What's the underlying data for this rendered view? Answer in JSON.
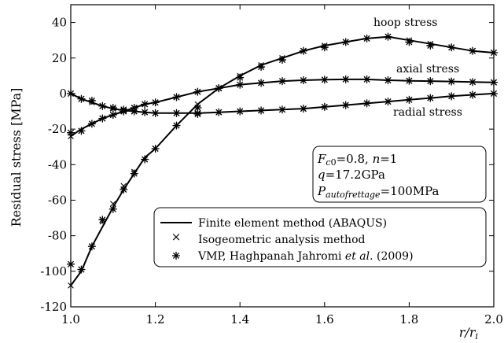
{
  "chart_data": {
    "type": "line",
    "xlabel": "r/r_i",
    "ylabel": "Residual stress [MPa]",
    "xlim": [
      1.0,
      2.0
    ],
    "ylim": [
      -120,
      50
    ],
    "xticks": [
      "1.0",
      "1.2",
      "1.4",
      "1.6",
      "1.8",
      "2.0"
    ],
    "yticks": [
      "40",
      "20",
      "0",
      "-20",
      "-40",
      "-60",
      "-80",
      "-100",
      "-120"
    ],
    "grid": false,
    "legend_placement": "lower-right",
    "annotations": [
      "hoop stress",
      "axial stress",
      "radial stress"
    ],
    "params": {
      "line1": "Fc0=0.8, n=1",
      "line2": "q=17.2GPa",
      "line3": "Pautofrettage=100MPa"
    },
    "legend": [
      "Finite element method (ABAQUS)",
      "Isogeometric analysis method",
      "VMP, Haghpanah Jahromi et al. (2009)"
    ],
    "series": [
      {
        "name": "hoop stress",
        "x": [
          1.0,
          1.025,
          1.05,
          1.075,
          1.1,
          1.125,
          1.15,
          1.175,
          1.2,
          1.25,
          1.3,
          1.35,
          1.4,
          1.45,
          1.5,
          1.55,
          1.6,
          1.65,
          1.7,
          1.75,
          1.8,
          1.85,
          1.9,
          1.95,
          2.0
        ],
        "fem": [
          -108,
          -100,
          -86,
          -75,
          -64,
          -54,
          -45,
          -36,
          -31,
          -18,
          -6,
          3,
          10,
          16,
          20,
          24,
          27,
          29,
          31,
          32,
          30,
          28,
          26,
          24,
          23
        ],
        "iga": [
          -108,
          -99,
          -86,
          -72,
          -62,
          -52,
          -44,
          -37,
          -31,
          -18,
          -6,
          3,
          10,
          16,
          20,
          24,
          27,
          29,
          31,
          32,
          30,
          28,
          26,
          24,
          23
        ],
        "vmp": [
          -96,
          -99,
          -86,
          -71,
          -65,
          -54,
          -45,
          -37,
          -31,
          -18,
          -8,
          3,
          9,
          15,
          19,
          24,
          26,
          29,
          31,
          32,
          29,
          27,
          26,
          24,
          23
        ]
      },
      {
        "name": "axial stress",
        "x": [
          1.0,
          1.025,
          1.05,
          1.075,
          1.1,
          1.125,
          1.15,
          1.175,
          1.2,
          1.25,
          1.3,
          1.35,
          1.4,
          1.45,
          1.5,
          1.55,
          1.6,
          1.65,
          1.7,
          1.75,
          1.8,
          1.85,
          1.9,
          1.95,
          2.0
        ],
        "fem": [
          -24,
          -20,
          -17,
          -14,
          -12,
          -10,
          -8,
          -6,
          -5,
          -2,
          1,
          3,
          5,
          6,
          7,
          7.5,
          7.8,
          8,
          8,
          7.5,
          7.2,
          7,
          6.8,
          6.5,
          6.3
        ],
        "iga": [
          -24,
          -21,
          -17,
          -14,
          -12,
          -10,
          -8,
          -6,
          -5,
          -2,
          1,
          3,
          5,
          6,
          7,
          7.5,
          7.8,
          8,
          8,
          7.5,
          7.2,
          7,
          6.8,
          6.5,
          6.3
        ],
        "vmp": [
          -22,
          -21,
          -17,
          -14,
          -12,
          -10,
          -8,
          -6,
          -5,
          -2,
          1,
          3,
          5,
          6,
          7,
          7.5,
          7.8,
          8,
          8,
          7.5,
          7.2,
          7,
          6.8,
          6.5,
          6.3
        ]
      },
      {
        "name": "radial stress",
        "x": [
          1.0,
          1.025,
          1.05,
          1.075,
          1.1,
          1.125,
          1.15,
          1.175,
          1.2,
          1.25,
          1.3,
          1.35,
          1.4,
          1.45,
          1.5,
          1.55,
          1.6,
          1.65,
          1.7,
          1.75,
          1.8,
          1.85,
          1.9,
          1.95,
          2.0
        ],
        "fem": [
          0,
          -3,
          -5,
          -7,
          -8.5,
          -9.5,
          -10,
          -10.5,
          -11,
          -11,
          -11,
          -10.5,
          -10,
          -9.5,
          -9,
          -8.5,
          -7.5,
          -6.5,
          -5.5,
          -4.5,
          -3.5,
          -2.5,
          -1.5,
          -0.7,
          0
        ],
        "iga": [
          0,
          -3,
          -5,
          -7,
          -8.5,
          -9.5,
          -10,
          -10.5,
          -11,
          -11,
          -11,
          -10.5,
          -10,
          -9.5,
          -9,
          -8.5,
          -7.5,
          -6.5,
          -5.5,
          -4.5,
          -3.5,
          -2.5,
          -1.5,
          -0.7,
          0
        ],
        "vmp": [
          0,
          -3,
          -4,
          -7,
          -8,
          -9,
          -10,
          -10.5,
          -11,
          -11,
          -11.5,
          -10.5,
          -10,
          -9.5,
          -9,
          -8.5,
          -7.5,
          -6.5,
          -5.5,
          -4.5,
          -3.5,
          -2.5,
          -1.5,
          -0.7,
          0
        ]
      }
    ]
  }
}
